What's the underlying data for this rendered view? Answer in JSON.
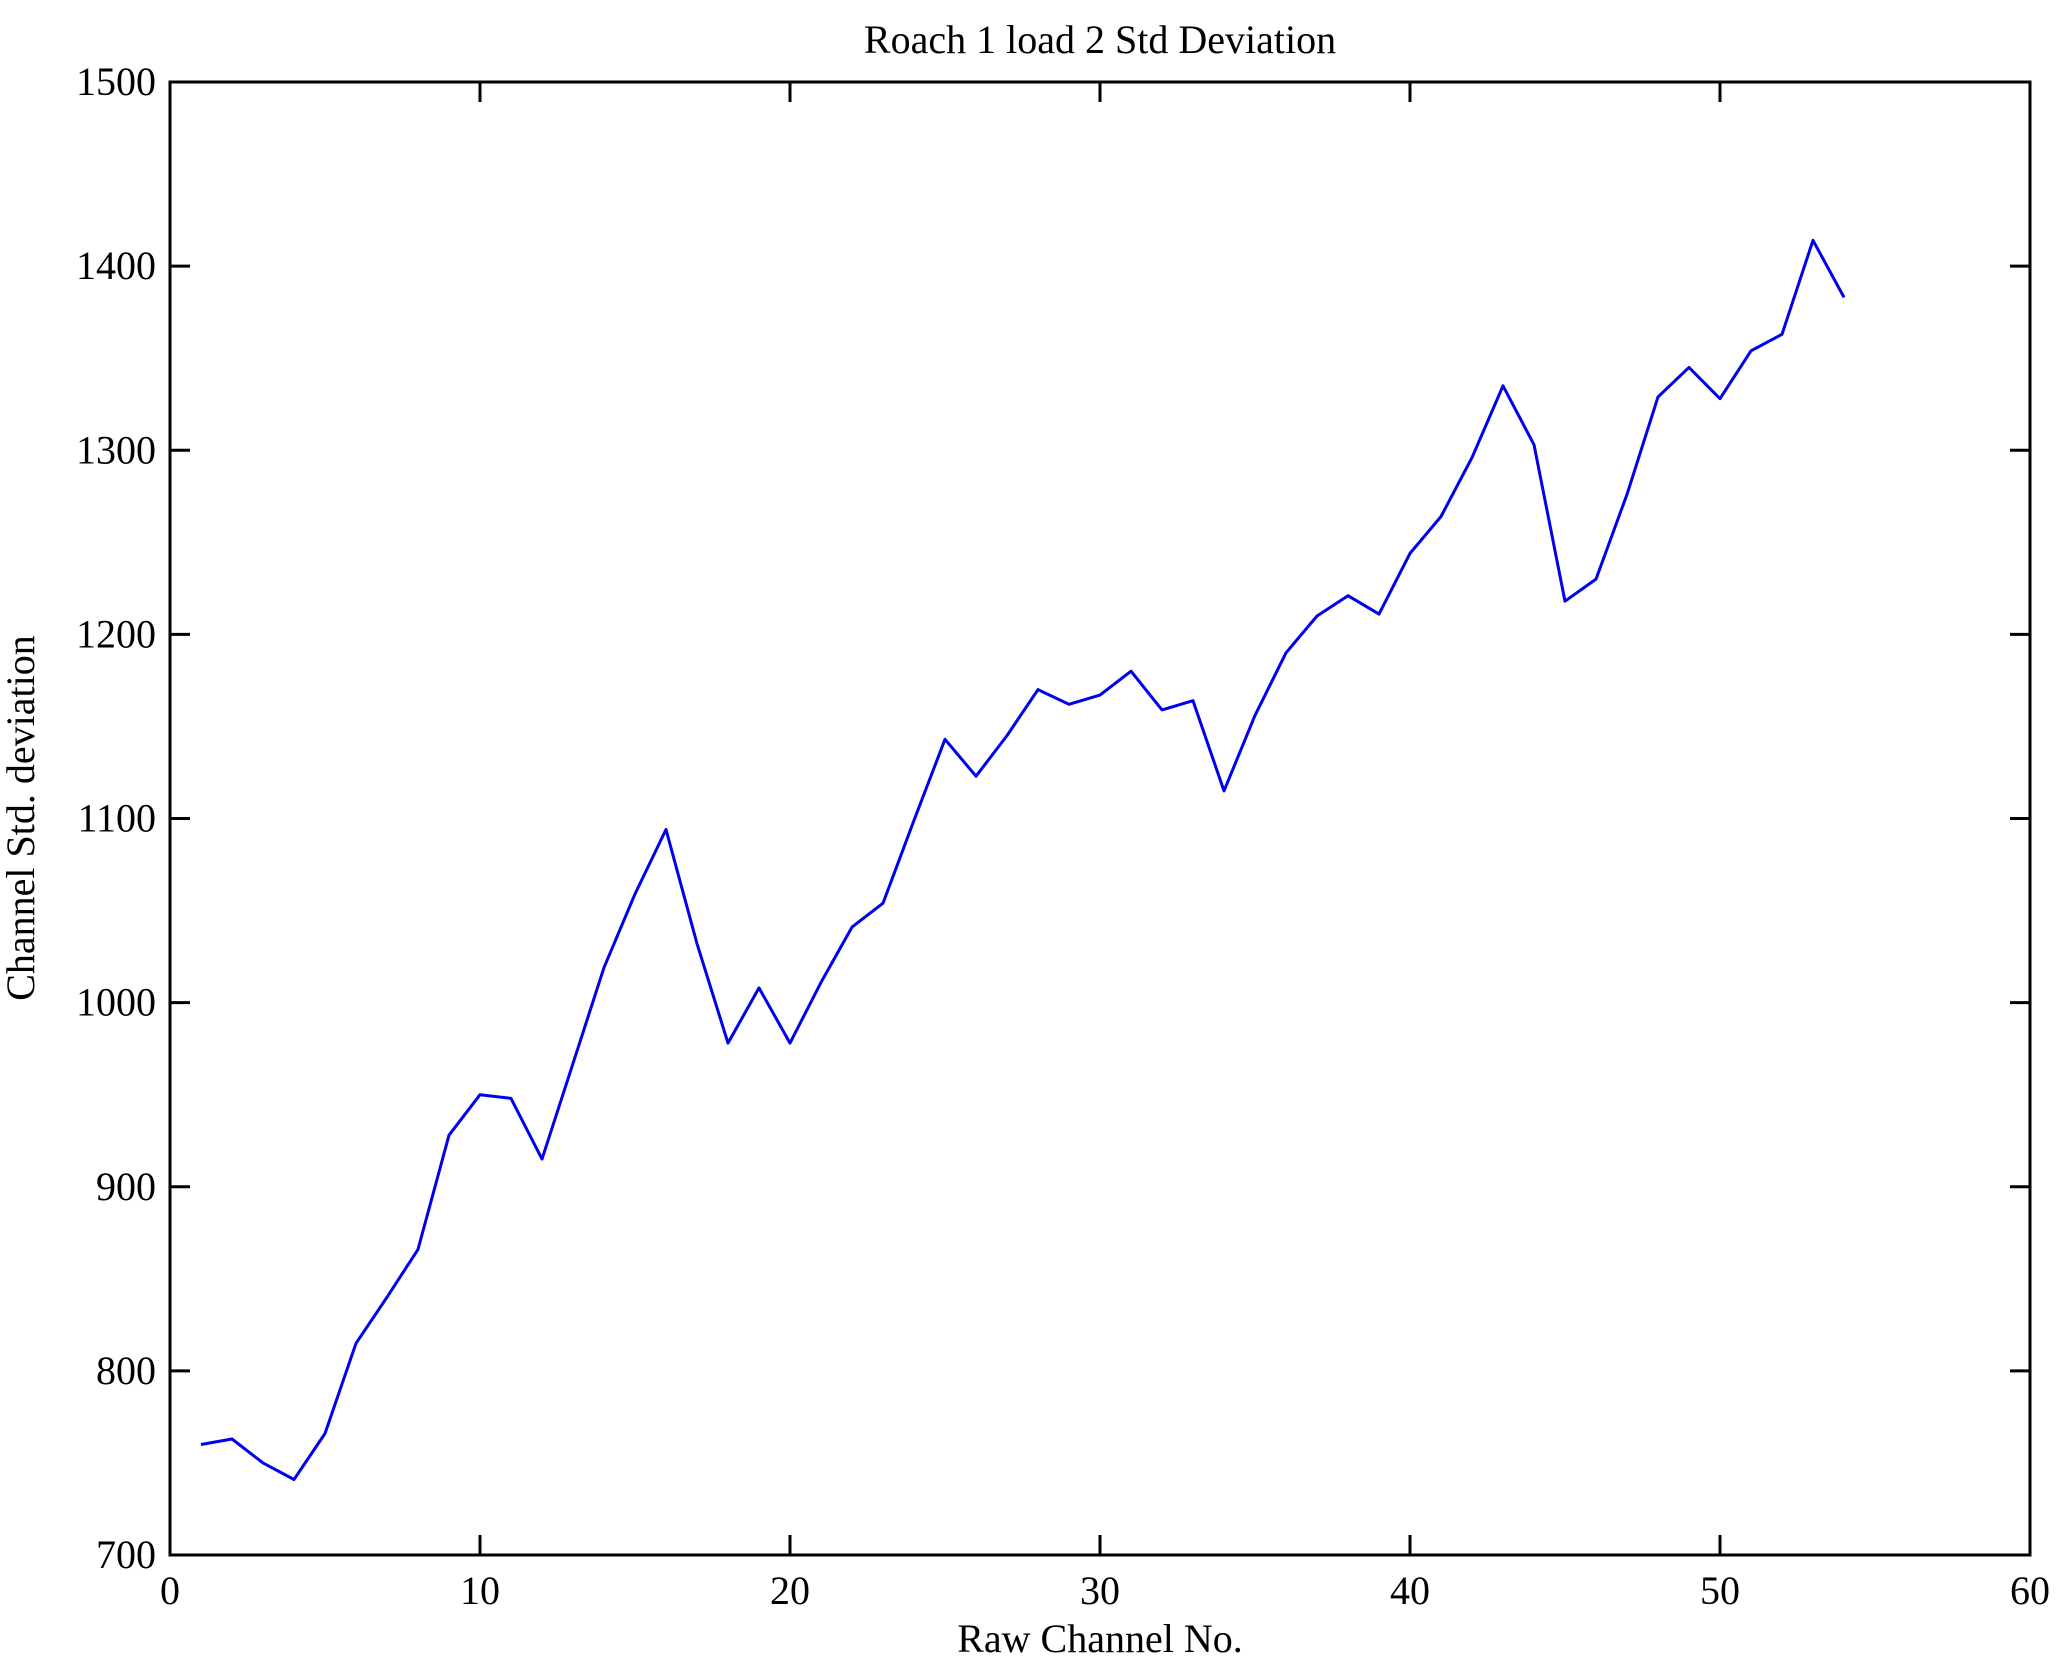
{
  "figure": {
    "background_color": "#ffffff",
    "axis_color": "#000000"
  },
  "chart_data": {
    "type": "line",
    "title": "Roach 1 load 2 Std Deviation",
    "xlabel": "Raw Channel No.",
    "ylabel": "Channel Std. deviation",
    "xlim": [
      0,
      60
    ],
    "ylim": [
      700,
      1500
    ],
    "xticks": [
      0,
      10,
      20,
      30,
      40,
      50,
      60
    ],
    "yticks": [
      700,
      800,
      900,
      1000,
      1100,
      1200,
      1300,
      1400,
      1500
    ],
    "grid": false,
    "legend": null,
    "line_color": "#0000ee",
    "x": [
      1,
      2,
      3,
      4,
      5,
      6,
      7,
      8,
      9,
      10,
      11,
      12,
      13,
      14,
      15,
      16,
      17,
      18,
      19,
      20,
      21,
      22,
      23,
      24,
      25,
      26,
      27,
      28,
      29,
      30,
      31,
      32,
      33,
      34,
      35,
      36,
      37,
      38,
      39,
      40,
      41,
      42,
      43,
      44,
      45,
      46,
      47,
      48,
      49,
      50,
      51,
      52,
      53,
      54
    ],
    "values": [
      760,
      763,
      750,
      741,
      766,
      815,
      840,
      866,
      928,
      950,
      948,
      915,
      967,
      1019,
      1059,
      1094,
      1032,
      978,
      1008,
      978,
      1011,
      1041,
      1054,
      1099,
      1143,
      1123,
      1145,
      1170,
      1162,
      1167,
      1180,
      1159,
      1164,
      1115,
      1156,
      1190,
      1210,
      1221,
      1211,
      1244,
      1264,
      1296,
      1335,
      1303,
      1218,
      1230,
      1276,
      1329,
      1345,
      1328,
      1354,
      1363,
      1414,
      1383
    ]
  }
}
